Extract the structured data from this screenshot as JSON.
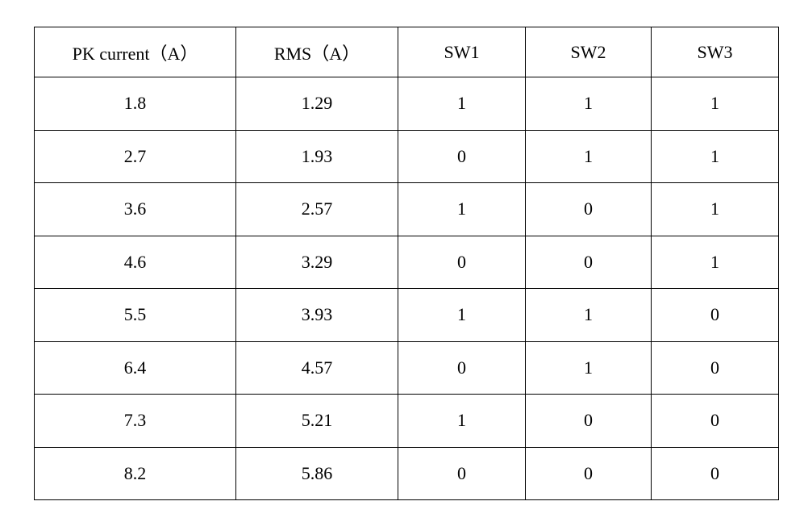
{
  "table": {
    "columns": [
      "PK current（A）",
      "RMS（A）",
      "SW1",
      "SW2",
      "SW3"
    ],
    "rows": [
      [
        "1.8",
        "1.29",
        "1",
        "1",
        "1"
      ],
      [
        "2.7",
        "1.93",
        "0",
        "1",
        "1"
      ],
      [
        "3.6",
        "2.57",
        "1",
        "0",
        "1"
      ],
      [
        "4.6",
        "3.29",
        "0",
        "0",
        "1"
      ],
      [
        "5.5",
        "3.93",
        "1",
        "1",
        "0"
      ],
      [
        "6.4",
        "4.57",
        "0",
        "1",
        "0"
      ],
      [
        "7.3",
        "5.21",
        "1",
        "0",
        "0"
      ],
      [
        "8.2",
        "5.86",
        "0",
        "0",
        "0"
      ]
    ],
    "colors": {
      "border": "#000000",
      "text": "#000000",
      "background": "#ffffff"
    }
  }
}
